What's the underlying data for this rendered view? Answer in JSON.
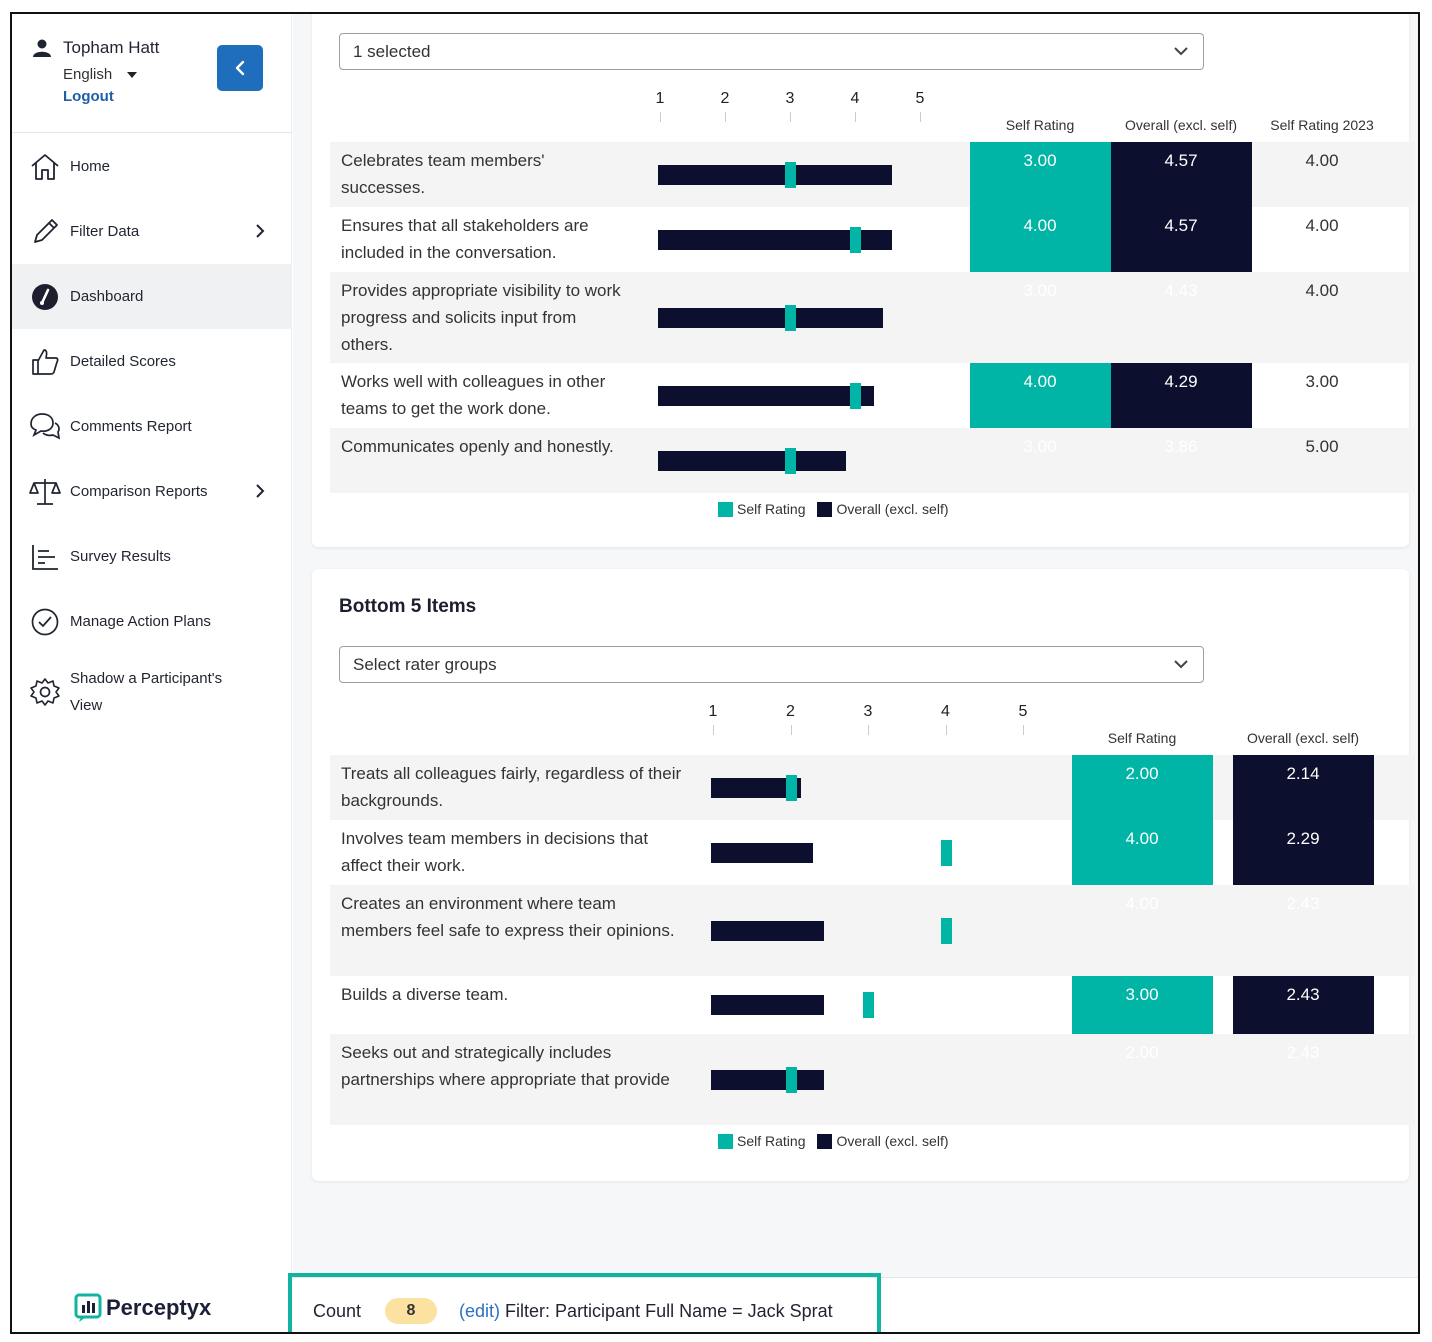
{
  "user": {
    "name": "Topham Hatt",
    "language": "English",
    "logout": "Logout"
  },
  "nav": [
    {
      "label": "Home",
      "icon": "home-icon",
      "chevron": false,
      "active": false
    },
    {
      "label": "Filter Data",
      "icon": "pencil-icon",
      "chevron": true,
      "active": false
    },
    {
      "label": "Dashboard",
      "icon": "dashboard-gauge-icon",
      "chevron": false,
      "active": true
    },
    {
      "label": "Detailed Scores",
      "icon": "thumbs-up-icon",
      "chevron": false,
      "active": false
    },
    {
      "label": "Comments Report",
      "icon": "comments-icon",
      "chevron": false,
      "active": false
    },
    {
      "label": "Comparison Reports",
      "icon": "scales-icon",
      "chevron": true,
      "active": false
    },
    {
      "label": "Survey Results",
      "icon": "bar-chart-icon",
      "chevron": false,
      "active": false
    },
    {
      "label": "Manage Action Plans",
      "icon": "check-circle-icon",
      "chevron": false,
      "active": false
    },
    {
      "label": "Shadow a Participant's View",
      "icon": "gear-icon",
      "chevron": false,
      "active": false
    }
  ],
  "brand": "Perceptyx",
  "top_section": {
    "select_value": "1 selected",
    "axis": [
      "1",
      "2",
      "3",
      "4",
      "5"
    ],
    "headers": [
      "Self Rating",
      "Overall (excl. self)",
      "Self Rating 2023"
    ],
    "legend": [
      "Self Rating",
      "Overall (excl. self)"
    ],
    "rows": [
      {
        "text": "Celebrates team members' successes.",
        "self": "3.00",
        "overall": "4.57",
        "prior": "4.00"
      },
      {
        "text": "Ensures that all stakeholders are included in the conversation.",
        "self": "4.00",
        "overall": "4.57",
        "prior": "4.00"
      },
      {
        "text": "Provides appropriate visibility to work progress and solicits input from others.",
        "self": "3.00",
        "overall": "4.43",
        "prior": "4.00"
      },
      {
        "text": "Works well with colleagues in other teams to get the work done.",
        "self": "4.00",
        "overall": "4.29",
        "prior": "3.00"
      },
      {
        "text": "Communicates openly and honestly.",
        "self": "3.00",
        "overall": "3.86",
        "prior": "5.00"
      }
    ]
  },
  "bottom_section": {
    "title": "Bottom 5 Items",
    "select_placeholder": "Select rater groups",
    "axis": [
      "1",
      "2",
      "3",
      "4",
      "5"
    ],
    "headers": [
      "Self Rating",
      "Overall (excl. self)"
    ],
    "legend": [
      "Self Rating",
      "Overall (excl. self)"
    ],
    "rows": [
      {
        "text": "Treats all colleagues fairly, regardless of their backgrounds.",
        "self": "2.00",
        "overall": "2.14"
      },
      {
        "text": "Involves team members in decisions that affect their work.",
        "self": "4.00",
        "overall": "2.29"
      },
      {
        "text": "Creates an environment where team members feel safe to express their opinions.",
        "self": "4.00",
        "overall": "2.43"
      },
      {
        "text": "Builds a diverse team.",
        "self": "3.00",
        "overall": "2.43"
      },
      {
        "text": "Seeks out and strategically includes partnerships where appropriate that provide",
        "self": "2.00",
        "overall": "2.43"
      }
    ]
  },
  "footer": {
    "count_label": "Count",
    "count_value": "8",
    "edit": "(edit)",
    "filter_label": "Filter:",
    "filter_text": "Participant Full Name = Jack Sprat"
  },
  "colors": {
    "teal": "#00b5a5",
    "navy": "#0d0f2e",
    "blue": "#1f6dbd"
  }
}
